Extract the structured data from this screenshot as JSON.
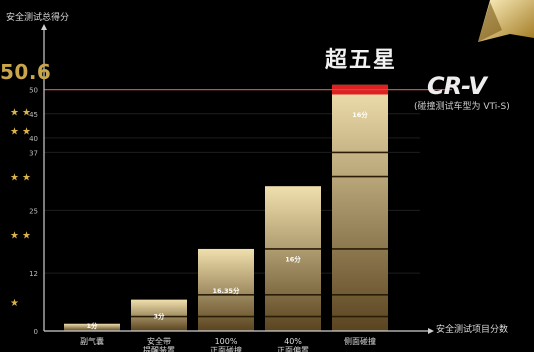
{
  "chart_data": {
    "type": "bar",
    "title": "超五星",
    "ylabel": "安全测试总得分",
    "xlabel": "安全测试项目分数",
    "ylim": [
      0,
      52
    ],
    "score_label": "50.6",
    "reference_line": {
      "value": 50,
      "color": "#c0504d"
    },
    "y_ticks": [
      {
        "value": 0,
        "label": "0"
      },
      {
        "value": 12,
        "label": "12"
      },
      {
        "value": 25,
        "label": "25"
      },
      {
        "value": 37,
        "label": "37"
      },
      {
        "value": 40,
        "label": "40"
      },
      {
        "value": 45,
        "label": "45"
      },
      {
        "value": 50,
        "label": "50"
      }
    ],
    "star_rows": [
      {
        "y": 6,
        "count": 1
      },
      {
        "y": 20,
        "count": 2
      },
      {
        "y": 32,
        "count": 2
      },
      {
        "y": 41.5,
        "count": 2
      },
      {
        "y": 45.5,
        "count": 2
      }
    ],
    "categories": [
      "副气囊",
      "安全带提醒装置",
      "100%正面碰撞",
      "40%正面偏置碰撞",
      "侧面碰撞"
    ],
    "category_lines": [
      [
        "副气囊"
      ],
      [
        "安全带",
        "提醒装置"
      ],
      [
        "100%",
        "正面碰撞"
      ],
      [
        "40%",
        "正面偏置"
      ],
      [
        "侧面碰撞"
      ]
    ],
    "values": [
      1.5,
      6.5,
      17,
      30,
      51
    ],
    "bar_labels": [
      "1分",
      "3分",
      "16.35分",
      "16分",
      "16分"
    ],
    "red_cap": {
      "bar_index": 4,
      "from": 49,
      "to": 51,
      "color": "#e02020"
    },
    "bar_color_top": "#f1e0ae",
    "bar_color_bottom": "#5a4420",
    "segment_bounds": [
      [],
      [
        3
      ],
      [
        3,
        7.5
      ],
      [
        3,
        7.5,
        17
      ],
      [
        3,
        7.5,
        17,
        32,
        37
      ]
    ],
    "emblem_color": "#c8a040"
  },
  "logo_text": "CR-V",
  "model_note": "(碰撞测试车型为 VTi-S)"
}
